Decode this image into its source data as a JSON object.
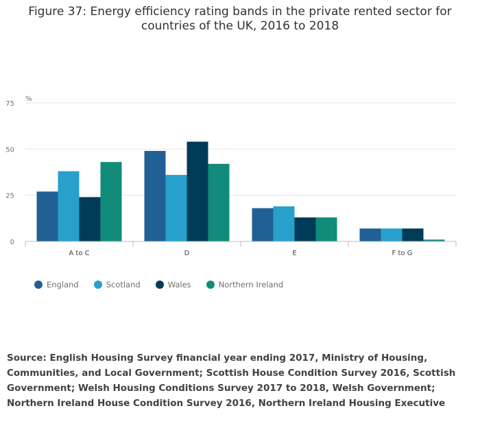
{
  "title_line1": "Figure 37: Energy efficiency rating bands in the private rented sector for",
  "title_line2": "countries of the UK, 2016 to 2018",
  "source": "Source: English Housing Survey financial year ending 2017, Ministry of Housing, Communities, and Local Government; Scottish House Condition Survey 2016, Scottish Government; Welsh Housing Conditions Survey 2017 to 2018, Welsh Government; Northern Ireland House Condition Survey 2016, Northern Ireland Housing Executive",
  "chart_data": {
    "type": "bar",
    "title": "Figure 37: Energy efficiency rating bands in the private rented sector for countries of the UK, 2016 to 2018",
    "ylabel": "%",
    "xlabel": "",
    "ylim": [
      0,
      75
    ],
    "yticks": [
      0,
      25,
      50,
      75
    ],
    "grid": true,
    "legend_position": "bottom-left",
    "categories": [
      "A to C",
      "D",
      "E",
      "F to G"
    ],
    "series": [
      {
        "name": "England",
        "color": "#206095",
        "values": [
          27,
          49,
          18,
          7
        ]
      },
      {
        "name": "Scotland",
        "color": "#27a0cc",
        "values": [
          38,
          36,
          19,
          7
        ]
      },
      {
        "name": "Wales",
        "color": "#003c57",
        "values": [
          24,
          54,
          13,
          7
        ]
      },
      {
        "name": "Northern Ireland",
        "color": "#118c7b",
        "values": [
          43,
          42,
          13,
          1
        ]
      }
    ]
  }
}
